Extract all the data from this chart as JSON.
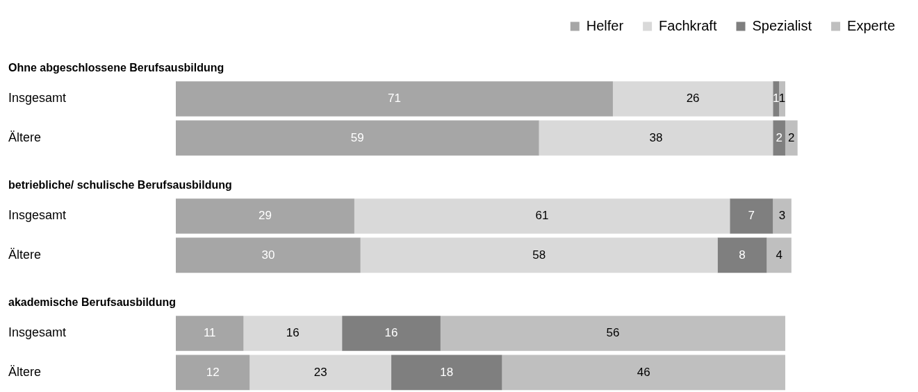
{
  "chart_data": {
    "type": "bar",
    "orientation": "horizontal",
    "stacked": true,
    "data_labels": true,
    "legend": "top right",
    "grid": false,
    "tick_labels": "y",
    "categories": [
      "Ohne abgeschlossene Berufsausbildung",
      "Insgesamt",
      "Ältere",
      "betriebliche/ schulische Berufsausbildung",
      "Insgesamt",
      "Ältere",
      "akademische Berufsausbildung",
      "Insgesamt",
      "Ältere"
    ],
    "series": [
      {
        "name": "Helfer",
        "color": "#a6a6a6",
        "values": [
          null,
          71,
          59,
          null,
          29,
          30,
          null,
          11,
          12
        ]
      },
      {
        "name": "Fachkraft",
        "color": "#d9d9d9",
        "values": [
          null,
          26,
          38,
          null,
          61,
          58,
          null,
          16,
          23
        ]
      },
      {
        "name": "Spezialist",
        "color": "#7f7f7f",
        "values": [
          null,
          1,
          2,
          null,
          7,
          8,
          null,
          16,
          18
        ]
      },
      {
        "name": "Experte",
        "color": "#bfbfbf",
        "values": [
          null,
          1,
          2,
          null,
          3,
          4,
          null,
          56,
          46
        ]
      }
    ]
  }
}
